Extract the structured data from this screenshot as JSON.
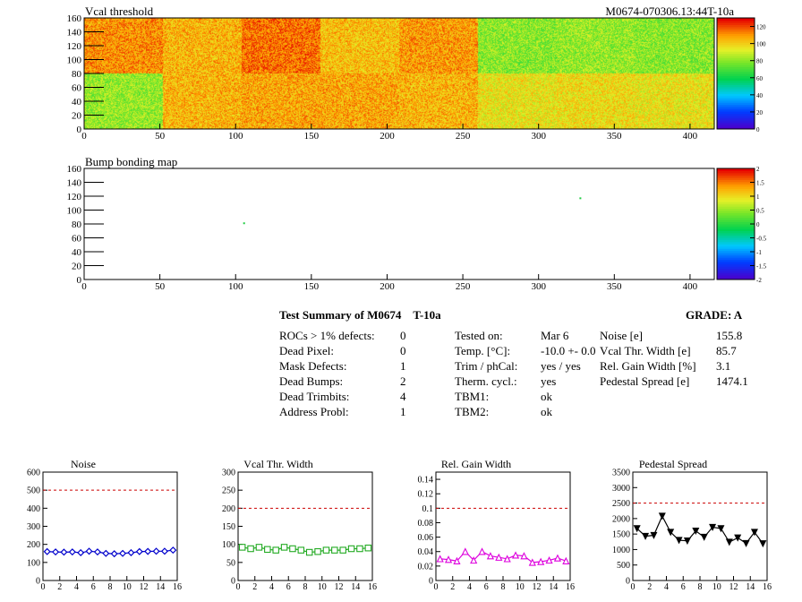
{
  "top_map": {
    "title": "Vcal threshold",
    "module_label": "M0674-070306.13:44T-10a",
    "x_ticks": [
      "0",
      "50",
      "100",
      "150",
      "200",
      "250",
      "300",
      "350",
      "400"
    ],
    "y_ticks": [
      "0",
      "20",
      "40",
      "60",
      "80",
      "100",
      "120",
      "140",
      "160"
    ],
    "z_ticks": [
      "0",
      "20",
      "40",
      "60",
      "80",
      "100",
      "120"
    ]
  },
  "bump_map": {
    "title": "Bump bonding map",
    "x_ticks": [
      "0",
      "50",
      "100",
      "150",
      "200",
      "250",
      "300",
      "350",
      "400"
    ],
    "y_ticks": [
      "0",
      "20",
      "40",
      "60",
      "80",
      "100",
      "120",
      "140",
      "160"
    ],
    "z_ticks": [
      "-2",
      "-1.5",
      "-1",
      "-0.5",
      "0",
      "0.5",
      "1",
      "1.5",
      "2"
    ]
  },
  "summary": {
    "title": "Test Summary of M0674",
    "test_type": "T-10a",
    "grade": "GRADE:  A",
    "defects": [
      {
        "label": "ROCs > 1% defects:",
        "value": "0"
      },
      {
        "label": "Dead Pixel:",
        "value": "0"
      },
      {
        "label": "Mask Defects:",
        "value": "1"
      },
      {
        "label": "Dead Bumps:",
        "value": "2"
      },
      {
        "label": "Dead Trimbits:",
        "value": "4"
      },
      {
        "label": "Address Probl:",
        "value": "1"
      }
    ],
    "conditions": [
      {
        "label": "Tested on:",
        "value": "Mar 6"
      },
      {
        "label": "Temp. [°C]:",
        "value": "-10.0 +- 0.0"
      },
      {
        "label": "Trim / phCal:",
        "value": "yes / yes"
      },
      {
        "label": "Therm. cycl.:",
        "value": "yes"
      },
      {
        "label": "TBM1:",
        "value": "ok"
      },
      {
        "label": "TBM2:",
        "value": "ok"
      }
    ],
    "stats": [
      {
        "label": "Noise [e]",
        "value": "155.8"
      },
      {
        "label": "Vcal Thr. Width [e]",
        "value": "85.7"
      },
      {
        "label": "Rel. Gain Width [%]",
        "value": "3.1"
      },
      {
        "label": "Pedestal Spread [e]",
        "value": "1474.1"
      }
    ]
  },
  "chart_data": [
    {
      "type": "heatmap",
      "title": "Vcal threshold",
      "xlim": [
        0,
        416
      ],
      "ylim": [
        0,
        160
      ],
      "zlim": [
        0,
        130
      ],
      "blocks_top": [
        112,
        106,
        116,
        104,
        110,
        80,
        82,
        80
      ],
      "blocks_bottom": [
        82,
        106,
        108,
        108,
        106,
        96,
        98,
        96
      ],
      "colors": {
        "min": "#4b00cc",
        "palette": "rainbow"
      }
    },
    {
      "type": "heatmap",
      "title": "Bump bonding map",
      "xlim": [
        0,
        416
      ],
      "ylim": [
        0,
        160
      ],
      "zlim": [
        -2,
        2
      ],
      "points": [
        {
          "x": 105,
          "y": 81,
          "z": 0
        },
        {
          "x": 327,
          "y": 117,
          "z": 0
        }
      ]
    },
    {
      "type": "line",
      "title": "Noise",
      "xlim": [
        0,
        16
      ],
      "ylim": [
        0,
        600
      ],
      "cut": 500,
      "x_ticks": [
        "0",
        "2",
        "4",
        "6",
        "8",
        "10",
        "12",
        "14",
        "16"
      ],
      "y_ticks": [
        "0",
        "100",
        "200",
        "300",
        "400",
        "500",
        "600"
      ],
      "x": [
        0.5,
        1.5,
        2.5,
        3.5,
        4.5,
        5.5,
        6.5,
        7.5,
        8.5,
        9.5,
        10.5,
        11.5,
        12.5,
        13.5,
        14.5,
        15.5
      ],
      "values": [
        160,
        158,
        157,
        158,
        154,
        162,
        158,
        150,
        148,
        150,
        154,
        160,
        161,
        162,
        162,
        168
      ],
      "color": "#0000cc",
      "marker": "diamond-open"
    },
    {
      "type": "line",
      "title": "Vcal Thr. Width",
      "xlim": [
        0,
        16
      ],
      "ylim": [
        0,
        300
      ],
      "cut": 200,
      "x_ticks": [
        "0",
        "2",
        "4",
        "6",
        "8",
        "10",
        "12",
        "14",
        "16"
      ],
      "y_ticks": [
        "0",
        "50",
        "100",
        "150",
        "200",
        "250",
        "300"
      ],
      "x": [
        0.5,
        1.5,
        2.5,
        3.5,
        4.5,
        5.5,
        6.5,
        7.5,
        8.5,
        9.5,
        10.5,
        11.5,
        12.5,
        13.5,
        14.5,
        15.5
      ],
      "values": [
        92,
        88,
        92,
        86,
        84,
        92,
        88,
        84,
        78,
        80,
        84,
        84,
        84,
        88,
        88,
        90
      ],
      "color": "#22aa22",
      "marker": "square-open"
    },
    {
      "type": "line",
      "title": "Rel. Gain Width",
      "xlim": [
        0,
        16
      ],
      "ylim": [
        0,
        0.15
      ],
      "cut": 0.1,
      "x_ticks": [
        "0",
        "2",
        "4",
        "6",
        "8",
        "10",
        "12",
        "14",
        "16"
      ],
      "y_ticks": [
        "0",
        "0.02",
        "0.04",
        "0.06",
        "0.08",
        "0.1",
        "0.12",
        "0.14"
      ],
      "x": [
        0.5,
        1.5,
        2.5,
        3.5,
        4.5,
        5.5,
        6.5,
        7.5,
        8.5,
        9.5,
        10.5,
        11.5,
        12.5,
        13.5,
        14.5,
        15.5
      ],
      "values": [
        0.03,
        0.029,
        0.027,
        0.04,
        0.028,
        0.04,
        0.034,
        0.032,
        0.03,
        0.035,
        0.034,
        0.025,
        0.026,
        0.028,
        0.031,
        0.027
      ],
      "color": "#dd00dd",
      "marker": "triangle-open"
    },
    {
      "type": "line",
      "title": "Pedestal Spread",
      "xlim": [
        0,
        16
      ],
      "ylim": [
        0,
        3500
      ],
      "cut": 2500,
      "x_ticks": [
        "0",
        "2",
        "4",
        "6",
        "8",
        "10",
        "12",
        "14",
        "16"
      ],
      "y_ticks": [
        "0",
        "500",
        "1000",
        "1500",
        "2000",
        "2500",
        "3000",
        "3500"
      ],
      "x": [
        0.5,
        1.5,
        2.5,
        3.5,
        4.5,
        5.5,
        6.5,
        7.5,
        8.5,
        9.5,
        10.5,
        11.5,
        12.5,
        13.5,
        14.5,
        15.5
      ],
      "values": [
        1680,
        1430,
        1460,
        2080,
        1560,
        1300,
        1280,
        1600,
        1400,
        1720,
        1680,
        1240,
        1380,
        1200,
        1560,
        1190
      ],
      "color": "#000000",
      "marker": "triangle-down-filled"
    }
  ]
}
